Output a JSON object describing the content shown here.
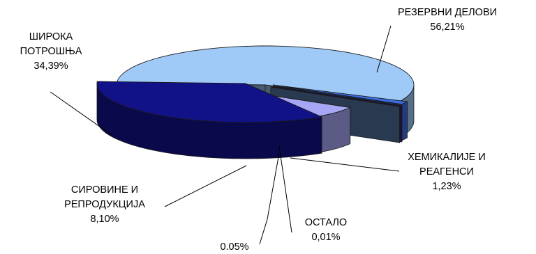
{
  "chart_data": {
    "type": "pie",
    "style": "3d-exploded",
    "slices": [
      {
        "id": "rezervni",
        "value": 56.21,
        "label_lines": [
          "РЕЗЕРВНИ ДЕЛОВИ"
        ],
        "value_text": "56,21%",
        "color": "#9fcaf8"
      },
      {
        "id": "hemikalije",
        "value": 1.23,
        "label_lines": [
          "ХЕМИКАЛИЈЕ И",
          "РЕАГЕНСИ"
        ],
        "value_text": "1,23%",
        "color": "#3c6ee0"
      },
      {
        "id": "ostalo",
        "value": 0.01,
        "label_lines": [
          "ОСТАЛО"
        ],
        "value_text": "0,01%",
        "color": "#4a2090"
      },
      {
        "id": "unnamed",
        "value": 0.05,
        "label_lines": [],
        "value_text": "0.05%",
        "color": "#5a7fb0"
      },
      {
        "id": "sirovine",
        "value": 8.1,
        "label_lines": [
          "СИРОВИНЕ И",
          "РЕПРОДУКЦИЈА"
        ],
        "value_text": "8,10%",
        "color": "#a6a6f4"
      },
      {
        "id": "siroka",
        "value": 34.39,
        "label_lines": [
          "ШИРОКА",
          "ПОТРОШЊА"
        ],
        "value_text": "34,39%",
        "color": "#111188"
      }
    ]
  }
}
